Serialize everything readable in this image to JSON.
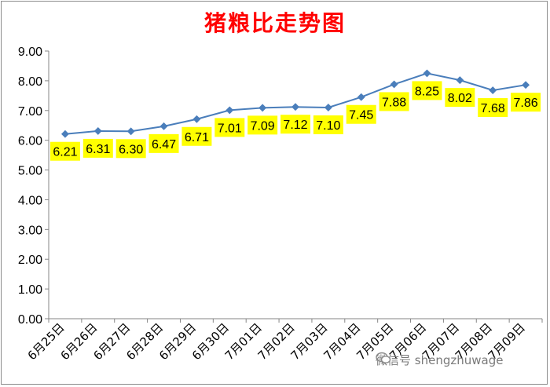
{
  "chart_data": {
    "type": "line",
    "title": "猪粮比走势图",
    "categories": [
      "6月25日",
      "6月26日",
      "6月27日",
      "6月28日",
      "6月29日",
      "6月30日",
      "7月01日",
      "7月02日",
      "7月03日",
      "7月04日",
      "7月05日",
      "7月06日",
      "7月07日",
      "7月08日",
      "7月09日"
    ],
    "series": [
      {
        "values": [
          6.21,
          6.31,
          6.3,
          6.47,
          6.71,
          7.01,
          7.09,
          7.12,
          7.1,
          7.45,
          7.88,
          8.25,
          8.02,
          7.68,
          7.86
        ]
      }
    ],
    "data_labels": [
      "6.21",
      "6.31",
      "6.30",
      "6.47",
      "6.71",
      "7.01",
      "7.09",
      "7.12",
      "7.10",
      "7.45",
      "7.88",
      "8.25",
      "8.02",
      "7.68",
      "7.86"
    ],
    "yticks": [
      "0.00",
      "1.00",
      "2.00",
      "3.00",
      "4.00",
      "5.00",
      "6.00",
      "7.00",
      "8.00",
      "9.00"
    ],
    "ylim": [
      0,
      9
    ],
    "grid": false,
    "xlabel": "",
    "ylabel": "",
    "colors": {
      "line": "#4a7ebb",
      "label_bg": "#ffff00",
      "title": "#ff0000"
    }
  },
  "watermark": {
    "text": "微信号 shengzhuwage",
    "icon": "wechat-icon"
  }
}
